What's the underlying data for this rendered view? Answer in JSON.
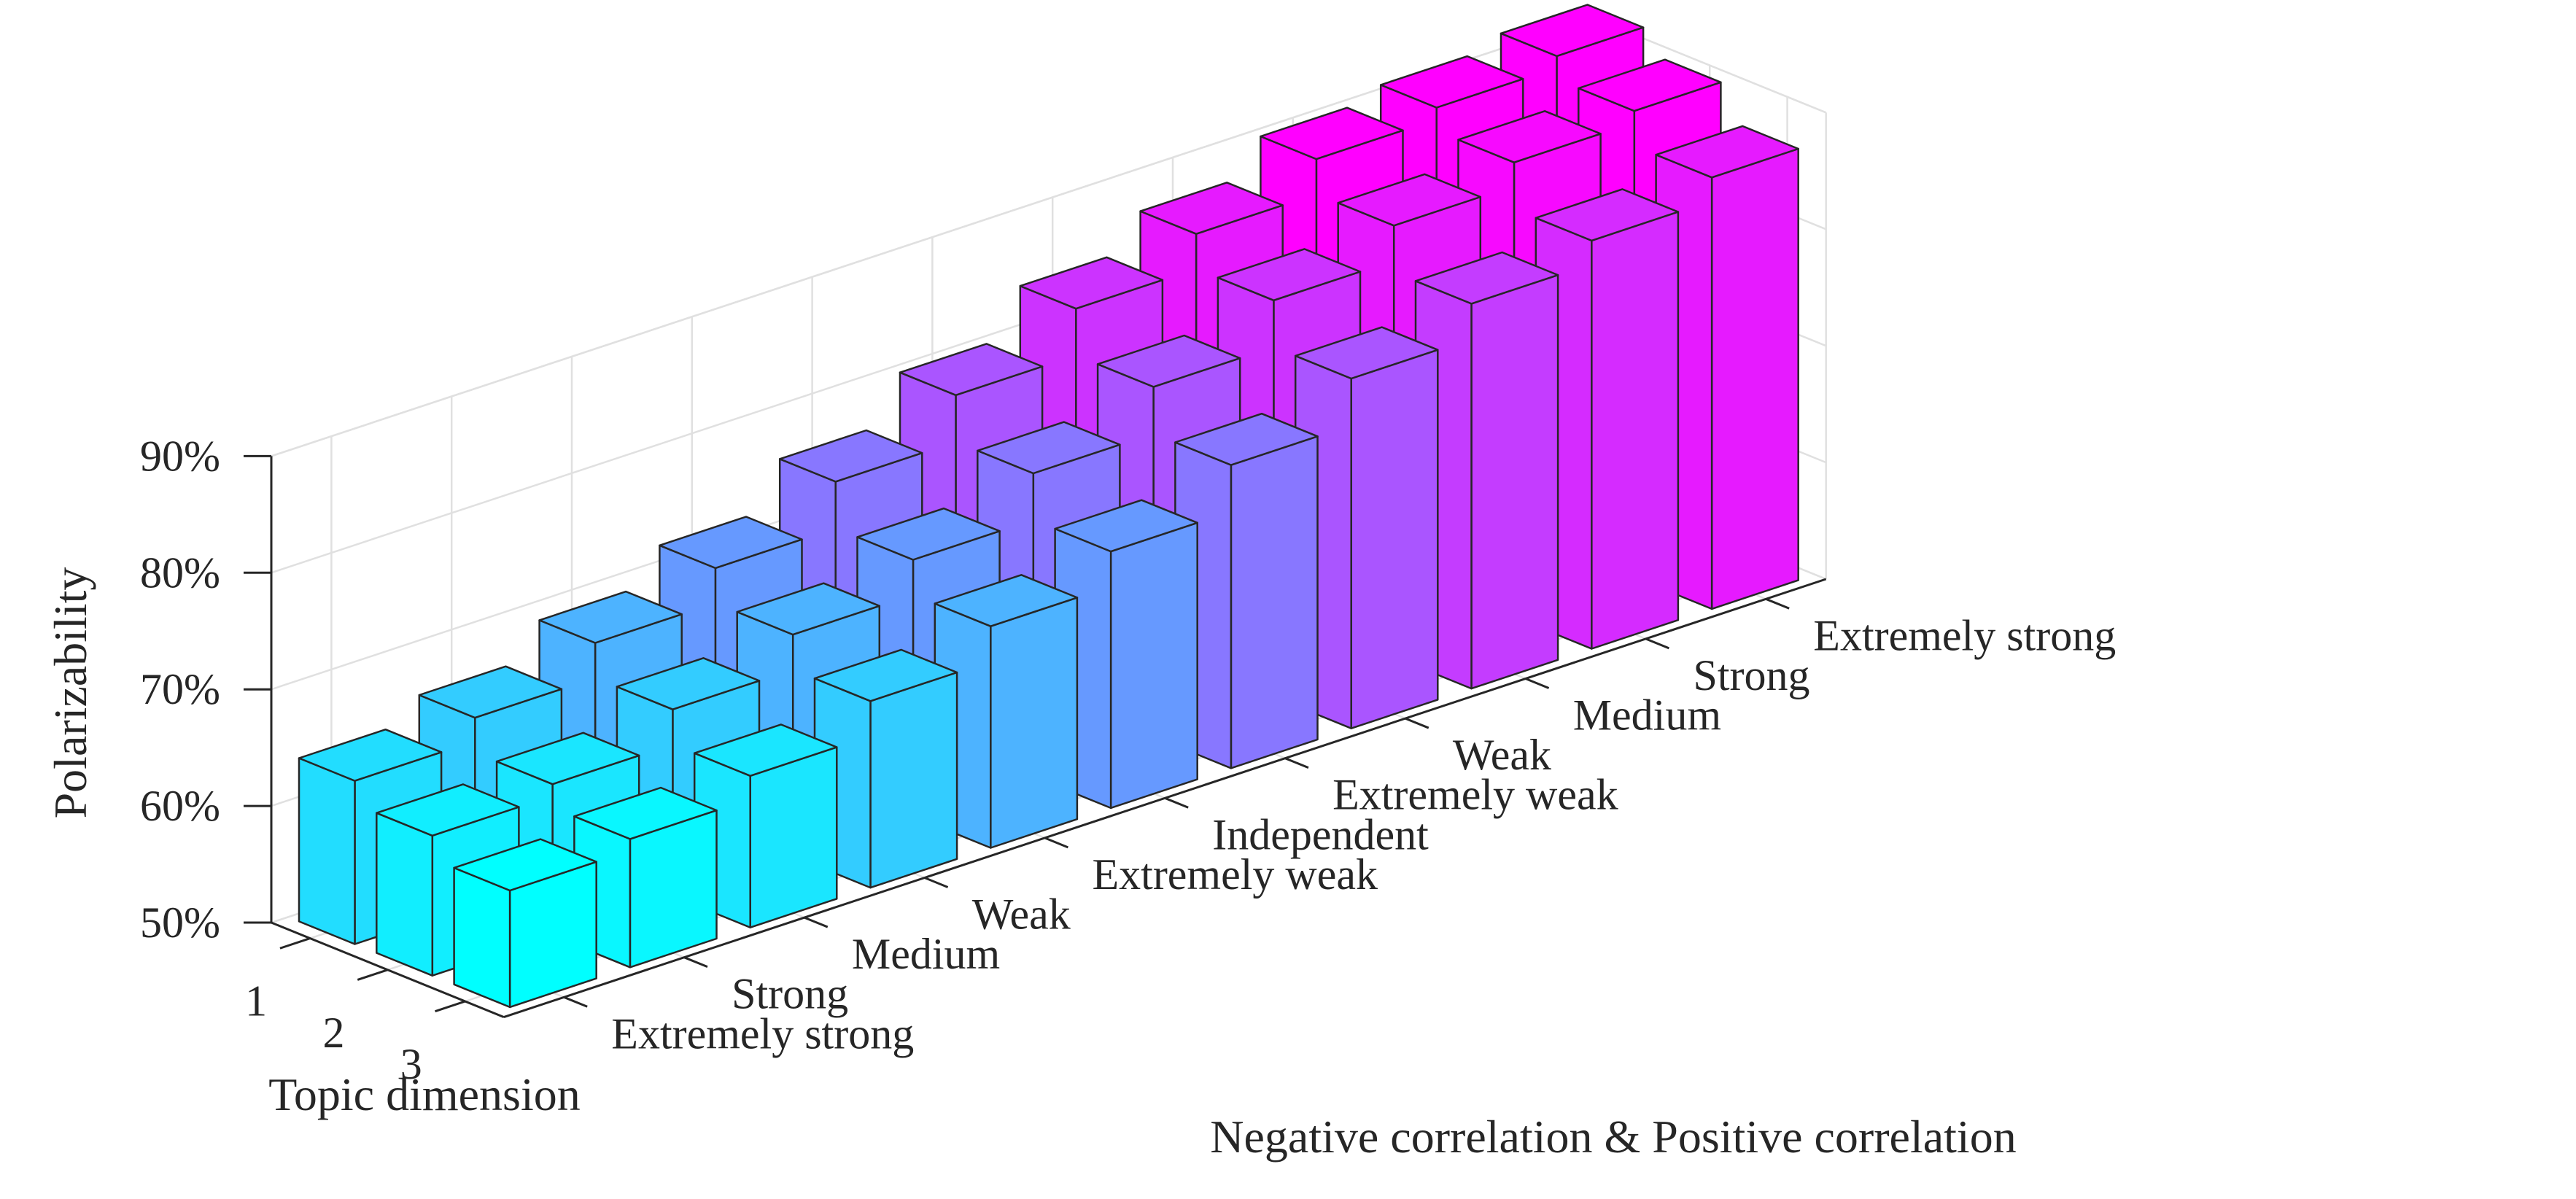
{
  "chart_data": {
    "type": "bar3d",
    "title": "",
    "xlabel": "Topic dimension",
    "ylabel": "Negative correlation & Positive correlation",
    "zlabel": "Polarizability",
    "x_categories": [
      "1",
      "2",
      "3"
    ],
    "y_categories": [
      "Extremely strong",
      "Strong",
      "Medium",
      "Weak",
      "Extremely weak",
      "Independent",
      "Extremely weak",
      "Weak",
      "Medium",
      "Strong",
      "Extremely strong"
    ],
    "zlim": [
      50,
      90
    ],
    "z_ticks": [
      50,
      60,
      70,
      80,
      90
    ],
    "z_tick_labels": [
      "50%",
      "60%",
      "70%",
      "80%",
      "90%"
    ],
    "series": [
      {
        "name": "1",
        "values": [
          64,
          66,
          69,
          72,
          76,
          80,
          84,
          87,
          90,
          91,
          92
        ]
      },
      {
        "name": "2",
        "values": [
          62,
          63,
          66,
          69,
          72,
          76,
          80,
          84,
          87,
          89,
          90
        ]
      },
      {
        "name": "3",
        "values": [
          60,
          61,
          63,
          66,
          69,
          72,
          76,
          80,
          83,
          85,
          87
        ]
      }
    ],
    "colormap": "cool",
    "color_start": "#00ffff",
    "color_end": "#ff00ff",
    "grid": true
  }
}
